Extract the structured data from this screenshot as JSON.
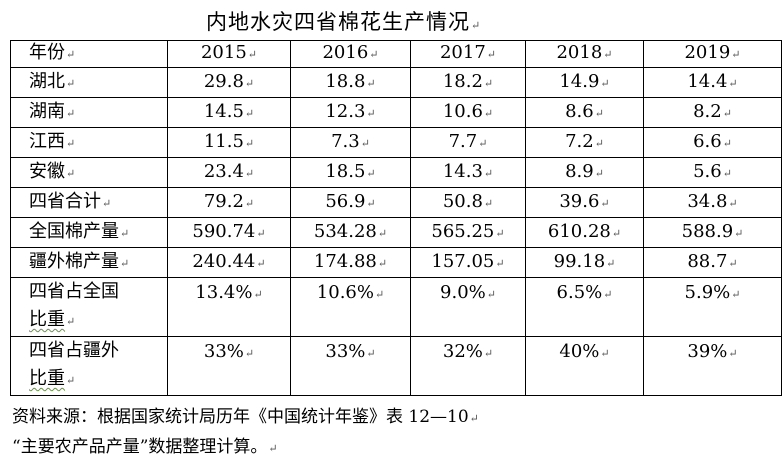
{
  "title": "内地水灾四省棉花生产情况",
  "table": {
    "header": {
      "label": "年份",
      "years": [
        "2015",
        "2016",
        "2017",
        "2018",
        "2019"
      ]
    },
    "rows": [
      {
        "label": "湖北",
        "values": [
          "29.8",
          "18.8",
          "18.2",
          "14.9",
          "14.4"
        ]
      },
      {
        "label": "湖南",
        "values": [
          "14.5",
          "12.3",
          "10.6",
          "8.6",
          "8.2"
        ]
      },
      {
        "label": "江西",
        "values": [
          "11.5",
          "7.3",
          "7.7",
          "7.2",
          "6.6"
        ]
      },
      {
        "label": "安徽",
        "values": [
          "23.4",
          "18.5",
          "14.3",
          "8.9",
          "5.6"
        ]
      },
      {
        "label": "四省合计",
        "values": [
          "79.2",
          "56.9",
          "50.8",
          "39.6",
          "34.8"
        ]
      },
      {
        "label": "全国棉产量",
        "values": [
          "590.74",
          "534.28",
          "565.25",
          "610.28",
          "588.9"
        ]
      },
      {
        "label": "疆外棉产量",
        "values": [
          "240.44",
          "174.88",
          "157.05",
          "99.18",
          "88.7"
        ]
      }
    ],
    "share_rows": [
      {
        "label_line1": "四省占全国",
        "label_line2": "比重",
        "values": [
          "13.4%",
          "10.6%",
          "9.0%",
          "6.5%",
          "5.9%"
        ]
      },
      {
        "label_line1": "四省占疆外",
        "label_line2": "比重",
        "values": [
          "33%",
          "33%",
          "32%",
          "40%",
          "39%"
        ]
      }
    ]
  },
  "source": {
    "line1": "资料来源：根据国家统计局历年《中国统计年鉴》表 12—10",
    "line2": "“主要农产品产量”数据整理计算。"
  },
  "paragraph_mark": "↵"
}
